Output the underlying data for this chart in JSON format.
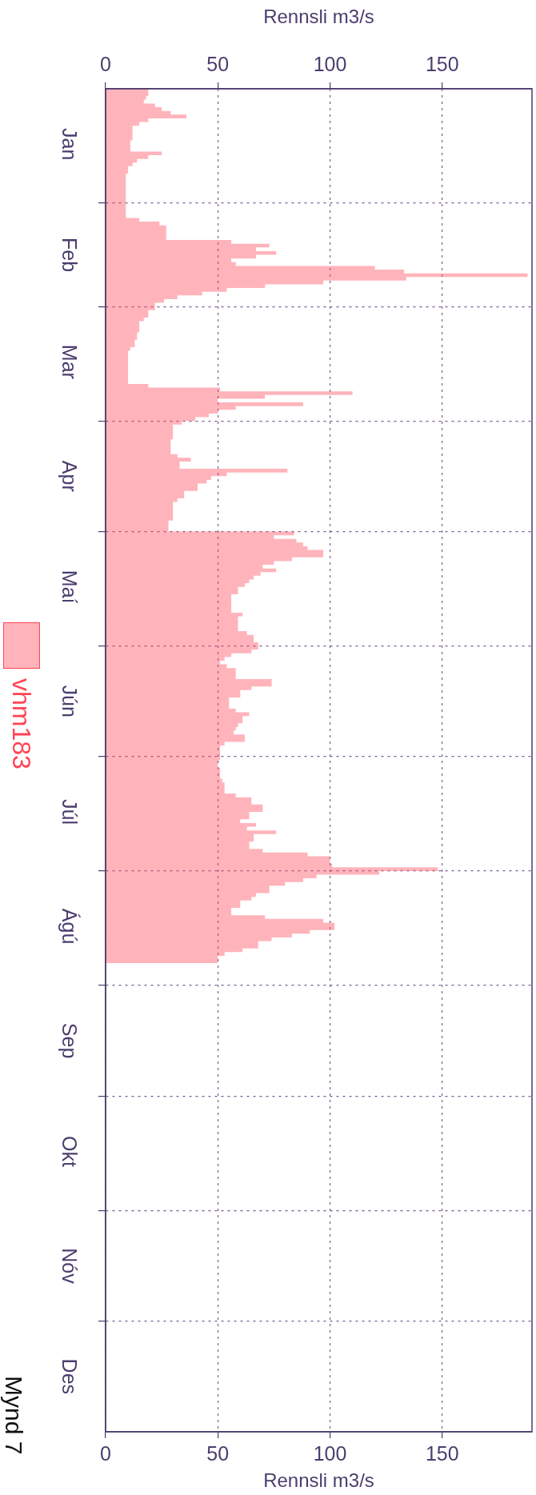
{
  "chart_data": {
    "type": "area",
    "orientation": "horizontal",
    "xlabel": "Rennsli m3/s",
    "x2label": "Rennsli m3/s",
    "xlim": [
      0,
      190
    ],
    "xticks": [
      0,
      50,
      100,
      150
    ],
    "x2lim": [
      0,
      190
    ],
    "x2ticks": [
      0,
      50,
      100,
      150
    ],
    "ylim": [
      "--12-31",
      "--01-01"
    ],
    "yticks": [
      {
        "value": "--01-16",
        "label": "Jan"
      },
      {
        "value": "--02-01",
        "label": null
      },
      {
        "value": "--02-15",
        "label": "Feb"
      },
      {
        "value": "--03-01",
        "label": null
      },
      {
        "value": "--03-16",
        "label": "Mar"
      },
      {
        "value": "--04-01",
        "label": null
      },
      {
        "value": "--04-16",
        "label": "Apr"
      },
      {
        "value": "--05-01",
        "label": null
      },
      {
        "value": "--05-16",
        "label": "Maí"
      },
      {
        "value": "--06-01",
        "label": null
      },
      {
        "value": "--06-16",
        "label": "Jún"
      },
      {
        "value": "--07-01",
        "label": null
      },
      {
        "value": "--07-16",
        "label": "Júl"
      },
      {
        "value": "--08-01",
        "label": null
      },
      {
        "value": "--08-16",
        "label": "Ágú"
      },
      {
        "value": "--09-01",
        "label": null
      },
      {
        "value": "--09-16",
        "label": "Sep"
      },
      {
        "value": "--10-01",
        "label": null
      },
      {
        "value": "--10-16",
        "label": "Okt"
      },
      {
        "value": "--11-01",
        "label": null
      },
      {
        "value": "--11-16",
        "label": "Nóv"
      },
      {
        "value": "--12-01",
        "label": null
      },
      {
        "value": "--12-16",
        "label": "Des"
      }
    ],
    "grid": true,
    "legend": "left",
    "annotations": [
      "Mynd 7"
    ],
    "x": [
      "--01-01",
      "--01-03",
      "--01-04",
      "--01-05",
      "--01-06",
      "--01-07",
      "--01-08",
      "--01-09",
      "--01-10",
      "--01-11",
      "--01-15",
      "--01-18",
      "--01-19",
      "--01-20",
      "--01-21",
      "--01-22",
      "--01-24",
      "--02-05",
      "--02-06",
      "--02-07",
      "--02-11",
      "--02-12",
      "--02-13",
      "--02-14",
      "--02-15",
      "--02-16",
      "--02-17",
      "--02-18",
      "--02-19",
      "--02-20",
      "--02-21",
      "--02-22",
      "--02-23",
      "--02-24",
      "--02-25",
      "--02-26",
      "--02-27",
      "--02-28",
      "--03-02",
      "--03-04",
      "--03-05",
      "--03-08",
      "--03-10",
      "--03-12",
      "--03-13",
      "--03-22",
      "--03-23",
      "--03-24",
      "--03-25",
      "--03-26",
      "--03-27",
      "--03-28",
      "--03-29",
      "--03-30",
      "--03-31",
      "--04-01",
      "--04-02",
      "--04-06",
      "--04-10",
      "--04-11",
      "--04-12",
      "--04-14",
      "--04-15",
      "--04-16",
      "--04-17",
      "--04-18",
      "--04-20",
      "--04-22",
      "--04-23",
      "--04-28",
      "--05-01",
      "--05-02",
      "--05-03",
      "--05-04",
      "--05-05",
      "--05-06",
      "--05-08",
      "--05-09",
      "--05-10",
      "--05-11",
      "--05-12",
      "--05-13",
      "--05-14",
      "--05-15",
      "--05-16",
      "--05-18",
      "--05-19",
      "--05-23",
      "--05-24",
      "--05-28",
      "--05-29",
      "--05-31",
      "--06-02",
      "--06-03",
      "--06-04",
      "--06-05",
      "--06-06",
      "--06-07",
      "--06-10",
      "--06-12",
      "--06-13",
      "--06-15",
      "--06-18",
      "--06-19",
      "--06-20",
      "--06-22",
      "--06-23",
      "--06-24",
      "--06-25",
      "--06-27",
      "--06-28",
      "--07-02",
      "--07-04",
      "--07-07",
      "--07-08",
      "--07-11",
      "--07-12",
      "--07-14",
      "--07-16",
      "--07-18",
      "--07-19",
      "--07-20",
      "--07-21",
      "--07-22",
      "--07-24",
      "--07-26",
      "--07-27",
      "--07-28",
      "--07-30",
      "--07-31",
      "--08-01",
      "--08-02",
      "--08-03",
      "--08-04",
      "--08-05",
      "--08-07",
      "--08-08",
      "--08-09",
      "--08-11",
      "--08-13",
      "--08-14",
      "--08-15",
      "--08-17",
      "--08-18",
      "--08-19",
      "--08-20",
      "--08-22",
      "--08-23",
      "--08-24",
      "--08-26"
    ],
    "series": [
      {
        "name": "vhm183",
        "color": "#ff4455",
        "values": [
          19,
          18,
          17,
          22,
          25,
          29,
          36,
          19,
          15,
          12,
          11,
          25,
          19,
          14,
          12,
          10,
          9,
          15,
          24,
          27,
          56,
          73,
          67,
          76,
          67,
          56,
          58,
          120,
          133,
          188,
          134,
          97,
          71,
          54,
          43,
          32,
          26,
          22,
          19,
          17,
          15,
          14,
          13,
          11,
          10,
          19,
          51,
          110,
          71,
          50,
          88,
          58,
          50,
          46,
          40,
          34,
          30,
          29,
          32,
          38,
          33,
          81,
          54,
          47,
          45,
          41,
          35,
          32,
          30,
          28,
          84,
          75,
          85,
          88,
          90,
          97,
          83,
          75,
          70,
          76,
          69,
          66,
          64,
          62,
          59,
          56,
          56,
          61,
          59,
          63,
          66,
          68,
          65,
          56,
          53,
          51,
          54,
          58,
          74,
          65,
          60,
          55,
          58,
          64,
          61,
          59,
          58,
          57,
          62,
          53,
          51,
          50,
          51,
          52,
          53,
          58,
          65,
          70,
          64,
          60,
          67,
          63,
          76,
          66,
          64,
          70,
          90,
          100,
          101,
          148,
          122,
          94,
          88,
          80,
          73,
          67,
          65,
          60,
          56,
          71,
          97,
          102,
          91,
          83,
          74,
          68,
          61,
          53,
          50,
          50
        ]
      }
    ]
  }
}
